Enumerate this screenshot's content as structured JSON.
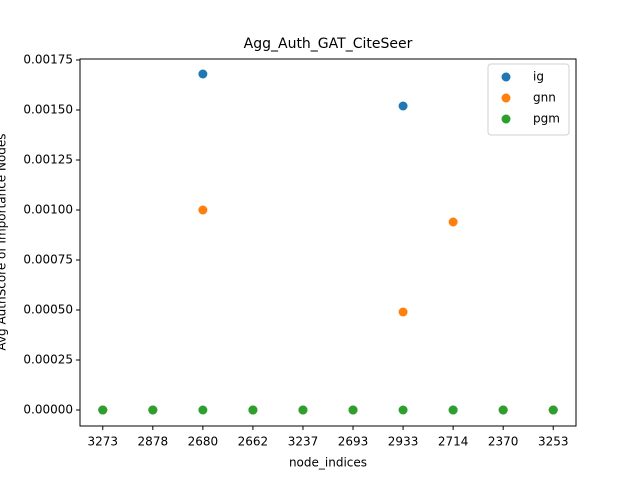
{
  "chart_data": {
    "type": "scatter",
    "title": "Agg_Auth_GAT_CiteSeer",
    "x_label": "node_indices",
    "y_label": "Avg AuthScore of Importance Nodes",
    "categories": [
      "3273",
      "2878",
      "2680",
      "2662",
      "3237",
      "2693",
      "2933",
      "2714",
      "2370",
      "3253"
    ],
    "series": [
      {
        "name": "ig",
        "color": "#1f77b4",
        "values": [
          0,
          0,
          0.00168,
          0,
          0,
          0,
          0.00152,
          0,
          0,
          0
        ]
      },
      {
        "name": "gnn",
        "color": "#ff7f0e",
        "values": [
          0,
          0,
          0.001,
          0,
          0,
          0,
          0.00049,
          0.00094,
          0,
          0
        ]
      },
      {
        "name": "pgm",
        "color": "#2ca02c",
        "values": [
          0,
          0,
          0,
          0,
          0,
          0,
          0,
          0,
          0,
          0
        ]
      }
    ],
    "ylim": [
      -8e-05,
      0.001755
    ],
    "yticks": [
      {
        "value": 0,
        "label": "0.00000"
      },
      {
        "value": 0.00025,
        "label": "0.00025"
      },
      {
        "value": 0.0005,
        "label": "0.00050"
      },
      {
        "value": 0.00075,
        "label": "0.00075"
      },
      {
        "value": 0.001,
        "label": "0.00100"
      },
      {
        "value": 0.00125,
        "label": "0.00125"
      },
      {
        "value": 0.0015,
        "label": "0.00150"
      },
      {
        "value": 0.00175,
        "label": "0.00175"
      }
    ],
    "legend": "upper right"
  }
}
